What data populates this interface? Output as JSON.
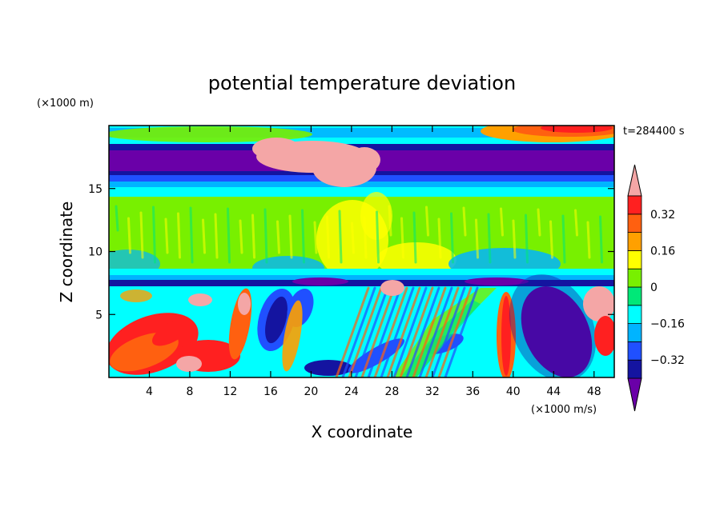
{
  "chart_data": {
    "type": "heatmap",
    "title": "potential temperature deviation",
    "xlabel": "X coordinate",
    "ylabel": "Z coordinate",
    "x_unit": "(×1000 m/s)",
    "y_unit": "(×1000 m)",
    "time_label": "t=284400 s",
    "xlim": [
      0,
      50
    ],
    "ylim": [
      0,
      20
    ],
    "x_ticks": [
      4,
      8,
      12,
      16,
      20,
      24,
      28,
      32,
      36,
      40,
      44,
      48
    ],
    "y_ticks": [
      5,
      10,
      15
    ],
    "colorbar": {
      "ticks": [
        0.32,
        0.16,
        0,
        -0.16,
        -0.32
      ],
      "tick_labels": [
        "0.32",
        "0.16",
        "0",
        "−0.16",
        "−0.32"
      ],
      "levels": [
        -0.4,
        -0.32,
        -0.24,
        -0.16,
        -0.08,
        0,
        0.08,
        0.16,
        0.24,
        0.32,
        0.4
      ],
      "colors": [
        "#6a00a8",
        "#1414a0",
        "#2050ff",
        "#00b4ff",
        "#00ffff",
        "#00e878",
        "#78f000",
        "#ffff00",
        "#ffa000",
        "#ff6010",
        "#ff2020",
        "#f4a6a6"
      ]
    }
  }
}
